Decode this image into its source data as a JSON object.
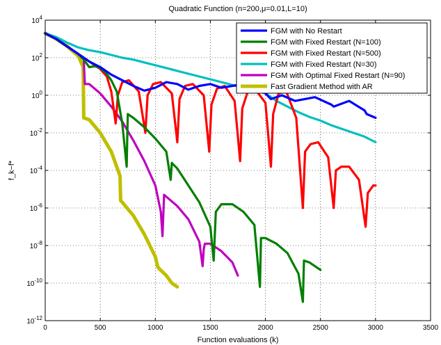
{
  "chart_data": {
    "type": "line",
    "title": "Quadratic Function (n=200,μ=0.01,L=10)",
    "xlabel": "Function evaluations (k)",
    "ylabel": "f_k−f*",
    "xlim": [
      0,
      3500
    ],
    "ylim_log10": [
      -12,
      4
    ],
    "yscale": "log",
    "grid": true,
    "legend_position": "top-right",
    "x_ticks": [
      "0",
      "500",
      "1000",
      "1500",
      "2000",
      "2500",
      "3000",
      "3500"
    ],
    "y_ticks": [
      {
        "base": "10",
        "exp": "4"
      },
      {
        "base": "10",
        "exp": "2"
      },
      {
        "base": "10",
        "exp": "0"
      },
      {
        "base": "10",
        "exp": "-2"
      },
      {
        "base": "10",
        "exp": "-4"
      },
      {
        "base": "10",
        "exp": "-6"
      },
      {
        "base": "10",
        "exp": "-8"
      },
      {
        "base": "10",
        "exp": "-10"
      },
      {
        "base": "10",
        "exp": "-12"
      }
    ],
    "series": [
      {
        "name": "FGM with No Restart",
        "color": "#0000ff",
        "x": [
          0,
          100,
          200,
          300,
          400,
          500,
          600,
          700,
          800,
          900,
          1000,
          1100,
          1200,
          1300,
          1400,
          1500,
          1600,
          1700,
          1800,
          1900,
          2000,
          2050,
          2150,
          2270,
          2450,
          2600,
          2620,
          2760,
          2900,
          2920,
          3000
        ],
        "log10y": [
          3.3,
          3.0,
          2.6,
          2.2,
          1.8,
          1.5,
          1.1,
          0.8,
          0.5,
          0.25,
          0.4,
          0.7,
          0.6,
          0.3,
          0.5,
          0.6,
          0.4,
          0.5,
          0.6,
          0.5,
          0.1,
          -0.2,
          0.0,
          -0.3,
          -0.1,
          -0.5,
          -0.6,
          -0.3,
          -0.8,
          -1.0,
          -1.2
        ]
      },
      {
        "name": "FGM with Fixed Restart (N=100)",
        "color": "#007f00",
        "x": [
          0,
          100,
          200,
          300,
          350,
          400,
          450,
          500,
          550,
          600,
          650,
          700,
          740,
          750,
          800,
          900,
          1000,
          1100,
          1140,
          1150,
          1200,
          1300,
          1400,
          1500,
          1530,
          1550,
          1600,
          1700,
          1800,
          1900,
          1950,
          1960,
          2000,
          2100,
          2200,
          2300,
          2340,
          2350,
          2400,
          2500
        ],
        "log10y": [
          3.3,
          3.0,
          2.6,
          2.2,
          1.9,
          1.5,
          1.55,
          1.45,
          1.2,
          0.8,
          0.2,
          -1.5,
          -3.8,
          -1.0,
          -1.2,
          -1.7,
          -2.3,
          -3.0,
          -4.5,
          -3.6,
          -3.9,
          -4.8,
          -5.7,
          -7.0,
          -8.8,
          -6.2,
          -5.8,
          -5.8,
          -6.2,
          -6.9,
          -10.2,
          -7.6,
          -7.6,
          -7.9,
          -8.4,
          -9.5,
          -11.0,
          -8.8,
          -8.9,
          -9.3
        ]
      },
      {
        "name": "FGM with Fixed Restart (N=500)",
        "color": "#ff0000",
        "x": [
          0,
          100,
          200,
          300,
          400,
          500,
          560,
          600,
          640,
          660,
          700,
          760,
          850,
          910,
          930,
          980,
          1050,
          1150,
          1200,
          1220,
          1270,
          1340,
          1440,
          1490,
          1510,
          1560,
          1630,
          1720,
          1770,
          1790,
          1840,
          1910,
          2000,
          2050,
          2070,
          2120,
          2190,
          2280,
          2340,
          2360,
          2410,
          2480,
          2570,
          2620,
          2640,
          2690,
          2760,
          2850,
          2910,
          2930,
          2980,
          3000
        ],
        "log10y": [
          3.3,
          3.0,
          2.6,
          2.2,
          1.8,
          1.4,
          1.0,
          0.2,
          -1.5,
          0.0,
          0.7,
          0.8,
          0.2,
          -2.0,
          0.0,
          0.6,
          0.7,
          0.1,
          -2.5,
          -0.2,
          0.5,
          0.6,
          0.0,
          -3.0,
          -0.5,
          0.35,
          0.5,
          -0.3,
          -3.5,
          -0.7,
          0.2,
          0.3,
          -0.4,
          -3.8,
          -1.0,
          0.1,
          0.2,
          -1.2,
          -6.0,
          -3.0,
          -2.6,
          -2.5,
          -3.3,
          -6.0,
          -4.0,
          -3.8,
          -3.8,
          -4.5,
          -7.0,
          -5.2,
          -4.8,
          -4.8
        ]
      },
      {
        "name": "FGM with Fixed Restart (N=30)",
        "color": "#00bfbf",
        "x": [
          0,
          100,
          200,
          300,
          400,
          500,
          600,
          700,
          800,
          900,
          1000,
          1100,
          1200,
          1300,
          1400,
          1500,
          1600,
          1700,
          1800,
          1900,
          2000,
          2100,
          2200,
          2300,
          2400,
          2500,
          2600,
          2700,
          2800,
          2900,
          3000
        ],
        "log10y": [
          3.3,
          3.1,
          2.8,
          2.55,
          2.4,
          2.3,
          2.15,
          2.0,
          1.9,
          1.75,
          1.6,
          1.45,
          1.3,
          1.15,
          1.0,
          0.85,
          0.7,
          0.55,
          0.4,
          0.25,
          0.1,
          -0.3,
          -0.6,
          -0.9,
          -1.15,
          -1.35,
          -1.6,
          -1.8,
          -2.0,
          -2.2,
          -2.5
        ]
      },
      {
        "name": "FGM with Optimal Fixed Restart (N=90)",
        "color": "#bf00bf",
        "x": [
          0,
          100,
          200,
          300,
          350,
          360,
          400,
          500,
          600,
          700,
          800,
          900,
          1000,
          1050,
          1065,
          1080,
          1100,
          1200,
          1300,
          1400,
          1430,
          1440,
          1450,
          1500,
          1600,
          1700,
          1750
        ],
        "log10y": [
          3.3,
          3.0,
          2.6,
          2.2,
          1.9,
          0.6,
          0.6,
          0.1,
          -0.6,
          -1.4,
          -2.4,
          -3.5,
          -4.8,
          -6.2,
          -7.5,
          -5.3,
          -5.4,
          -5.9,
          -6.6,
          -7.8,
          -9.1,
          -8.2,
          -7.9,
          -7.9,
          -8.3,
          -8.9,
          -9.6
        ]
      },
      {
        "name": "Fast Gradient Method with AR",
        "color": "#bfbf00",
        "x": [
          0,
          100,
          200,
          300,
          345,
          350,
          400,
          500,
          600,
          680,
          685,
          700,
          800,
          900,
          1000,
          1020,
          1030,
          1100,
          1150,
          1200
        ],
        "log10y": [
          3.3,
          3.0,
          2.6,
          2.1,
          1.5,
          -1.2,
          -1.3,
          -2.0,
          -3.0,
          -4.3,
          -5.6,
          -5.7,
          -6.4,
          -7.4,
          -8.6,
          -9.1,
          -9.2,
          -9.6,
          -10.0,
          -10.2
        ]
      }
    ]
  }
}
